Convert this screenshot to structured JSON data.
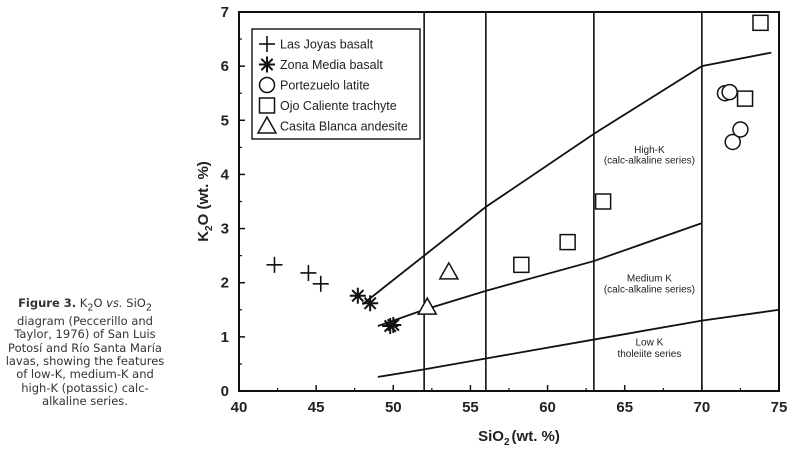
{
  "caption": {
    "label": "Figure 3.",
    "parts": [
      "K",
      "2",
      "O ",
      "vs.",
      " SiO",
      "2"
    ],
    "text": "diagram (Peccerillo and Taylor, 1976) of San Luis Potosí and Río Santa María lavas, showing the features of low-K, medium-K and high-K (potassic) calc-alkaline series."
  },
  "chart_data": {
    "type": "scatter",
    "xlim": [
      40,
      75
    ],
    "ylim": [
      0,
      7
    ],
    "xticks": [
      "40",
      "45",
      "50",
      "55",
      "60",
      "65",
      "70",
      "75"
    ],
    "yticks": [
      "0",
      "1",
      "2",
      "3",
      "4",
      "5",
      "6",
      "7"
    ],
    "xlabel": {
      "main": "SiO",
      "sub": "2",
      "rest": "(wt. %)"
    },
    "ylabel": {
      "main": "K",
      "sub": "2",
      "rest": "O (wt. %)"
    },
    "legend_position": "top-left",
    "series": [
      {
        "name": "Las Joyas basalt",
        "marker": "plus",
        "points": [
          [
            42.3,
            2.33
          ],
          [
            44.5,
            2.18
          ],
          [
            45.3,
            1.98
          ]
        ]
      },
      {
        "name": "Zona Media basalt",
        "marker": "asterisk",
        "points": [
          [
            47.7,
            1.76
          ],
          [
            48.5,
            1.62
          ],
          [
            49.8,
            1.2
          ],
          [
            50.0,
            1.22
          ]
        ]
      },
      {
        "name": "Portezuelo latite",
        "marker": "circle",
        "points": [
          [
            71.5,
            5.5
          ],
          [
            71.8,
            5.52
          ],
          [
            72.0,
            4.6
          ],
          [
            72.5,
            4.83
          ]
        ]
      },
      {
        "name": "Ojo Caliente trachyte",
        "marker": "square",
        "points": [
          [
            58.3,
            2.33
          ],
          [
            61.3,
            2.75
          ],
          [
            63.6,
            3.5
          ],
          [
            72.8,
            5.4
          ],
          [
            73.8,
            6.8
          ]
        ]
      },
      {
        "name": "Casita Blanca andesite",
        "marker": "triangle",
        "points": [
          [
            52.2,
            1.55
          ],
          [
            53.6,
            2.2
          ]
        ]
      }
    ],
    "boundary_lines": [
      {
        "points": [
          [
            49.0,
            1.2
          ],
          [
            52.0,
            1.5
          ],
          [
            56.0,
            1.85
          ],
          [
            63.0,
            2.4
          ],
          [
            70.0,
            3.1
          ]
        ]
      },
      {
        "points": [
          [
            48.0,
            1.6
          ],
          [
            56.0,
            3.4
          ],
          [
            63.0,
            4.75
          ],
          [
            70.0,
            6.0
          ],
          [
            74.5,
            6.25
          ]
        ]
      },
      {
        "points": [
          [
            49.0,
            0.26
          ],
          [
            52.0,
            0.4
          ],
          [
            56.0,
            0.6
          ],
          [
            63.0,
            0.95
          ],
          [
            70.0,
            1.3
          ],
          [
            75.0,
            1.5
          ]
        ]
      }
    ],
    "vertical_lines": [
      52,
      56,
      63,
      70
    ],
    "field_labels": [
      {
        "lines": [
          "High-K",
          "(calc-alkaline series)"
        ],
        "x": 66.6,
        "y": [
          4.4,
          4.2
        ]
      },
      {
        "lines": [
          "Medium K",
          "(calc-alkaline series)"
        ],
        "x": 66.6,
        "y": [
          2.02,
          1.82
        ]
      },
      {
        "lines": [
          "Low K",
          "tholeiite series"
        ],
        "x": 66.6,
        "y": [
          0.84,
          0.63
        ]
      }
    ],
    "grid": false
  }
}
